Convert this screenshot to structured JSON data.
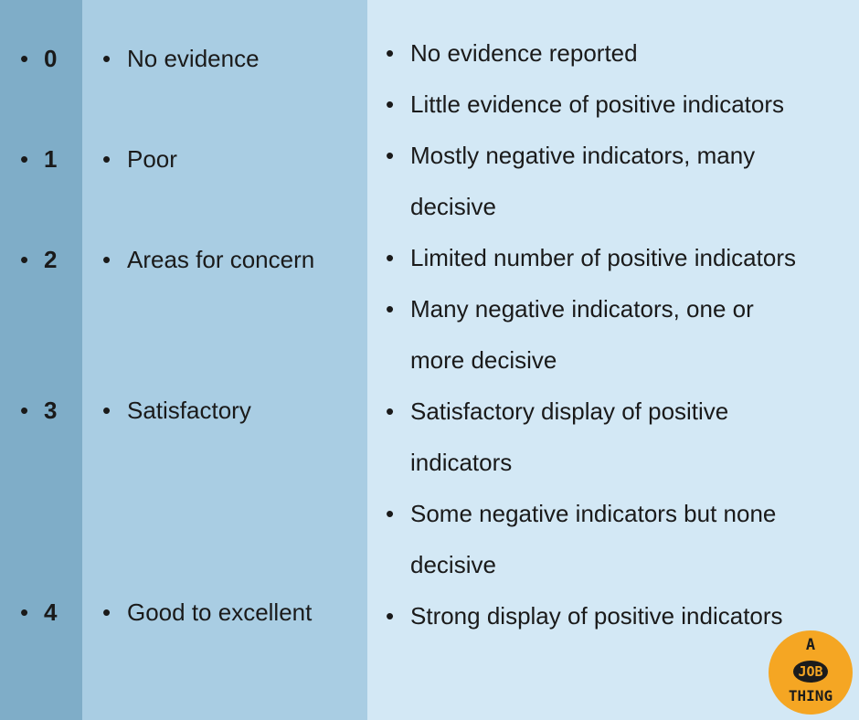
{
  "scores": [
    "0",
    "1",
    "2",
    "3",
    "4"
  ],
  "ratings": [
    "No evidence",
    "Poor",
    "Areas for concern",
    "Satisfactory",
    "Good to excellent"
  ],
  "descriptions": [
    "No evidence reported",
    "Little evidence of positive indicators",
    "Mostly negative indicators, many",
    "decisive",
    "Limited number of positive indicators",
    "Many negative indicators, one or",
    "more decisive",
    "Satisfactory display of positive",
    "indicators",
    "Some negative indicators but none",
    "decisive",
    "Strong display of positive indicators"
  ],
  "logo": {
    "line1": "A",
    "line2": "JOB",
    "line3": "THING"
  },
  "colors": {
    "score_column": "#7fadc8",
    "rating_column": "#a9cde3",
    "description_column": "#d3e8f5",
    "logo": "#f5a623"
  }
}
